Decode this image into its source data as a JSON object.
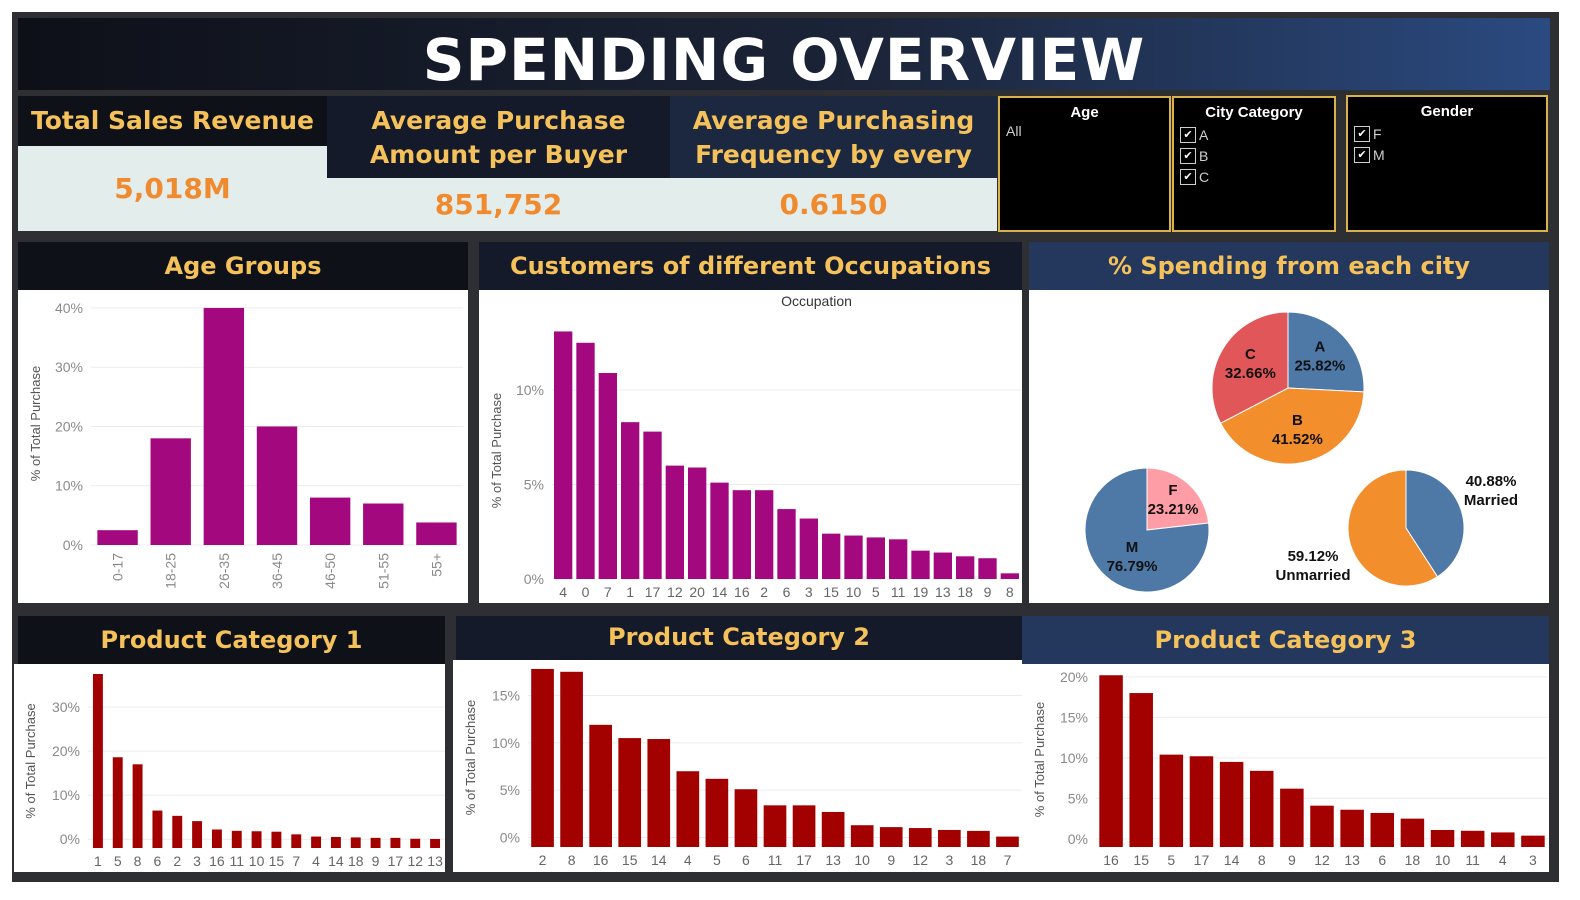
{
  "title": "SPENDING OVERVIEW",
  "kpis": {
    "revenue": {
      "label": "Total Sales Revenue",
      "value": "5,018M"
    },
    "avg_amount": {
      "label": "Average Purchase Amount per Buyer",
      "value": "851,752"
    },
    "avg_freq": {
      "label": "Average Purchasing Frequency by every buyer",
      "value": "0.6150"
    }
  },
  "filters": {
    "age": {
      "label": "Age",
      "value": "All"
    },
    "city": {
      "label": "City Category",
      "options": [
        "A",
        "B",
        "C"
      ]
    },
    "gender": {
      "label": "Gender",
      "options": [
        "F",
        "M"
      ]
    }
  },
  "panels": {
    "age": "Age Groups",
    "occupation": "Customers of different Occupations",
    "city": "% Spending from each city",
    "pc1": "Product Category 1",
    "pc2": "Product Category 2",
    "pc3": "Product Category 3"
  },
  "colors": {
    "bar_age": "#a3087e",
    "bar_product": "#a30000",
    "blue": "#4e79a7",
    "orange": "#f28e2b",
    "red": "#e15759",
    "pink": "#ff9da7"
  },
  "chart_data": [
    {
      "id": "age",
      "type": "bar",
      "ylabel": "% of Total Purchase",
      "categories": [
        "0-17",
        "18-25",
        "26-35",
        "36-45",
        "46-50",
        "51-55",
        "55+"
      ],
      "values": [
        2.5,
        18,
        40,
        20,
        8,
        7,
        3.8
      ],
      "ylim": [
        0,
        41
      ],
      "yticks": [
        0,
        10,
        20,
        30,
        40
      ],
      "tick_labels": [
        "0%",
        "10%",
        "20%",
        "30%",
        "40%"
      ]
    },
    {
      "id": "occupation",
      "type": "bar",
      "title": "Occupation",
      "ylabel": "% of Total Purchase",
      "categories": [
        "4",
        "0",
        "7",
        "1",
        "17",
        "12",
        "20",
        "14",
        "16",
        "2",
        "6",
        "3",
        "15",
        "10",
        "5",
        "11",
        "19",
        "13",
        "18",
        "9",
        "8"
      ],
      "values": [
        13.1,
        12.5,
        10.9,
        8.3,
        7.8,
        6.0,
        5.9,
        5.1,
        4.7,
        4.7,
        3.7,
        3.2,
        2.4,
        2.3,
        2.2,
        2.1,
        1.5,
        1.4,
        1.2,
        1.1,
        0.3
      ],
      "ylim": [
        0,
        13.6
      ],
      "yticks": [
        0,
        5,
        10
      ],
      "tick_labels": [
        "0%",
        "5%",
        "10%"
      ]
    },
    {
      "id": "city",
      "type": "pie",
      "slices": [
        {
          "label": "A",
          "pct": "25.82%",
          "value": 25.82
        },
        {
          "label": "B",
          "pct": "41.52%",
          "value": 41.52
        },
        {
          "label": "C",
          "pct": "32.66%",
          "value": 32.66
        }
      ]
    },
    {
      "id": "gender",
      "type": "pie",
      "slices": [
        {
          "label": "F",
          "pct": "23.21%",
          "value": 23.21
        },
        {
          "label": "M",
          "pct": "76.79%",
          "value": 76.79
        }
      ]
    },
    {
      "id": "marital",
      "type": "pie",
      "slices": [
        {
          "label": "Married",
          "pct": "40.88%",
          "value": 40.88
        },
        {
          "label": "Unmarried",
          "pct": "59.12%",
          "value": 59.12
        }
      ]
    },
    {
      "id": "pc1",
      "type": "bar",
      "ylabel": "% of Total Purchase",
      "categories": [
        "1",
        "5",
        "8",
        "6",
        "2",
        "3",
        "16",
        "11",
        "10",
        "15",
        "7",
        "4",
        "14",
        "18",
        "9",
        "17",
        "12",
        "13"
      ],
      "values": [
        37.5,
        18.6,
        17.0,
        6.5,
        5.3,
        4.1,
        2.2,
        1.9,
        1.8,
        1.7,
        1.1,
        0.6,
        0.5,
        0.4,
        0.3,
        0.3,
        0.1,
        0.05
      ],
      "ylim": [
        -2,
        37.5
      ],
      "yticks": [
        0,
        10,
        20,
        30
      ],
      "tick_labels": [
        "0%",
        "10%",
        "20%",
        "30%"
      ]
    },
    {
      "id": "pc2",
      "type": "bar",
      "ylabel": "% of Total Purchase",
      "categories": [
        "2",
        "8",
        "16",
        "15",
        "14",
        "4",
        "5",
        "6",
        "11",
        "17",
        "13",
        "10",
        "9",
        "12",
        "3",
        "18",
        "7"
      ],
      "values": [
        17.8,
        17.5,
        11.9,
        10.5,
        10.4,
        7.0,
        6.2,
        5.1,
        3.4,
        3.4,
        2.7,
        1.3,
        1.1,
        1.0,
        0.8,
        0.7,
        0.1
      ],
      "ylim": [
        -1,
        17.9
      ],
      "yticks": [
        0,
        5,
        10,
        15
      ],
      "tick_labels": [
        "0%",
        "5%",
        "10%",
        "15%"
      ]
    },
    {
      "id": "pc3",
      "type": "bar",
      "ylabel": "% of Total Purchase",
      "categories": [
        "16",
        "15",
        "5",
        "17",
        "14",
        "8",
        "9",
        "12",
        "13",
        "6",
        "18",
        "10",
        "11",
        "4",
        "3"
      ],
      "values": [
        20.2,
        18.0,
        10.4,
        10.2,
        9.5,
        8.4,
        6.2,
        4.1,
        3.6,
        3.2,
        2.5,
        1.1,
        1.0,
        0.8,
        0.4
      ],
      "ylim": [
        -1,
        20.6
      ],
      "yticks": [
        0,
        5,
        10,
        15,
        20
      ],
      "tick_labels": [
        "0%",
        "5%",
        "10%",
        "15%",
        "20%"
      ]
    }
  ]
}
